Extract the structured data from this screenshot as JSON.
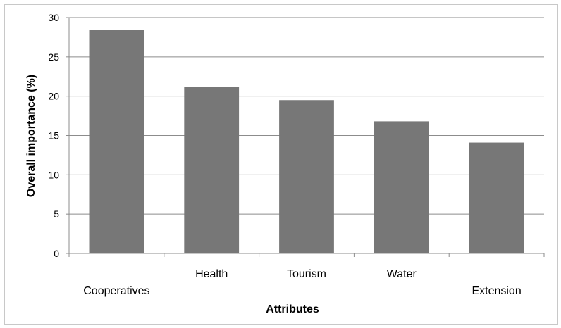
{
  "chart_data": {
    "type": "bar",
    "title": "",
    "xlabel": "Attributes",
    "ylabel": "Overall importance (%)",
    "categories": [
      "Cooperatives",
      "Health",
      "Tourism",
      "Water",
      "Extension"
    ],
    "values": [
      28.4,
      21.2,
      19.5,
      16.8,
      14.1
    ],
    "ylim": [
      0,
      30
    ],
    "yticks": [
      0,
      5,
      10,
      15,
      20,
      25,
      30
    ],
    "grid": true,
    "legend": "none",
    "bar_color": "#777777",
    "grid_color": "#8c8c8c"
  }
}
